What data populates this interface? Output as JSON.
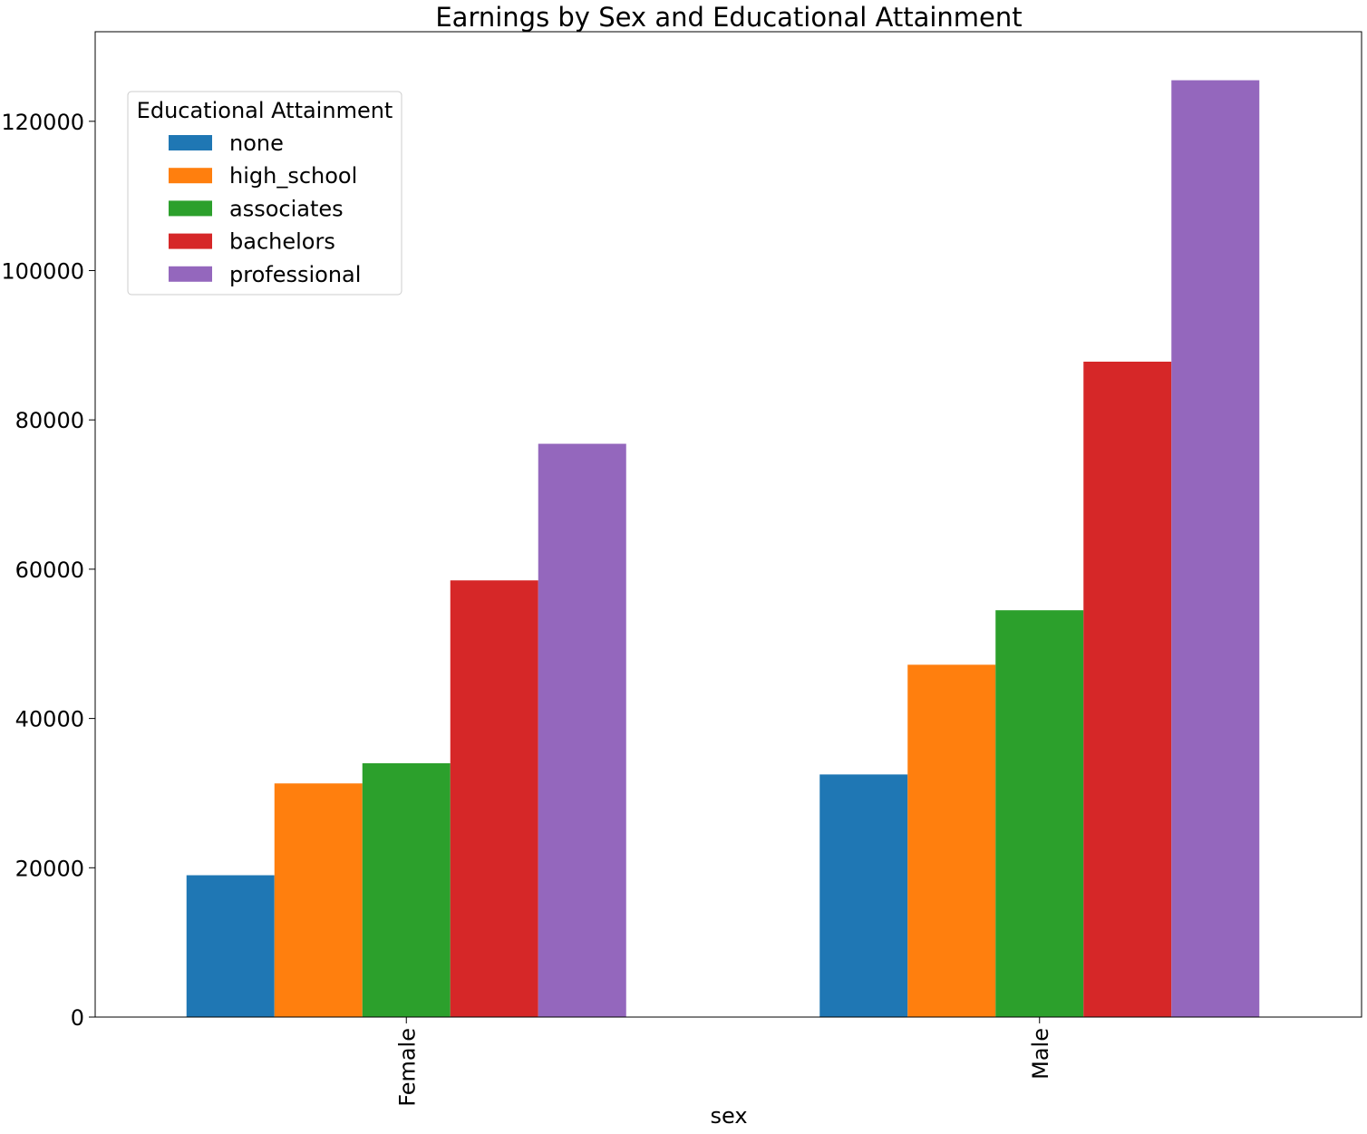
{
  "chart_data": {
    "type": "bar",
    "title": "Earnings by Sex and Educational Attainment",
    "xlabel": "sex",
    "ylabel": "",
    "categories": [
      "Female",
      "Male"
    ],
    "ylim": [
      0,
      132000
    ],
    "yticks": [
      0,
      20000,
      40000,
      60000,
      80000,
      100000,
      120000
    ],
    "ytick_labels": [
      "0",
      "20000",
      "40000",
      "60000",
      "80000",
      "100000",
      "120000"
    ],
    "grid": false,
    "legend": {
      "title": "Educational Attainment",
      "placement": "upper-left"
    },
    "series": [
      {
        "name": "none",
        "color": "#1f77b4",
        "values": [
          19000,
          32500
        ]
      },
      {
        "name": "high_school",
        "color": "#ff7f0e",
        "values": [
          31300,
          47200
        ]
      },
      {
        "name": "associates",
        "color": "#2ca02c",
        "values": [
          34000,
          54500
        ]
      },
      {
        "name": "bachelors",
        "color": "#d62728",
        "values": [
          58500,
          87800
        ]
      },
      {
        "name": "professional",
        "color": "#9467bd",
        "values": [
          76800,
          125500
        ]
      }
    ]
  }
}
